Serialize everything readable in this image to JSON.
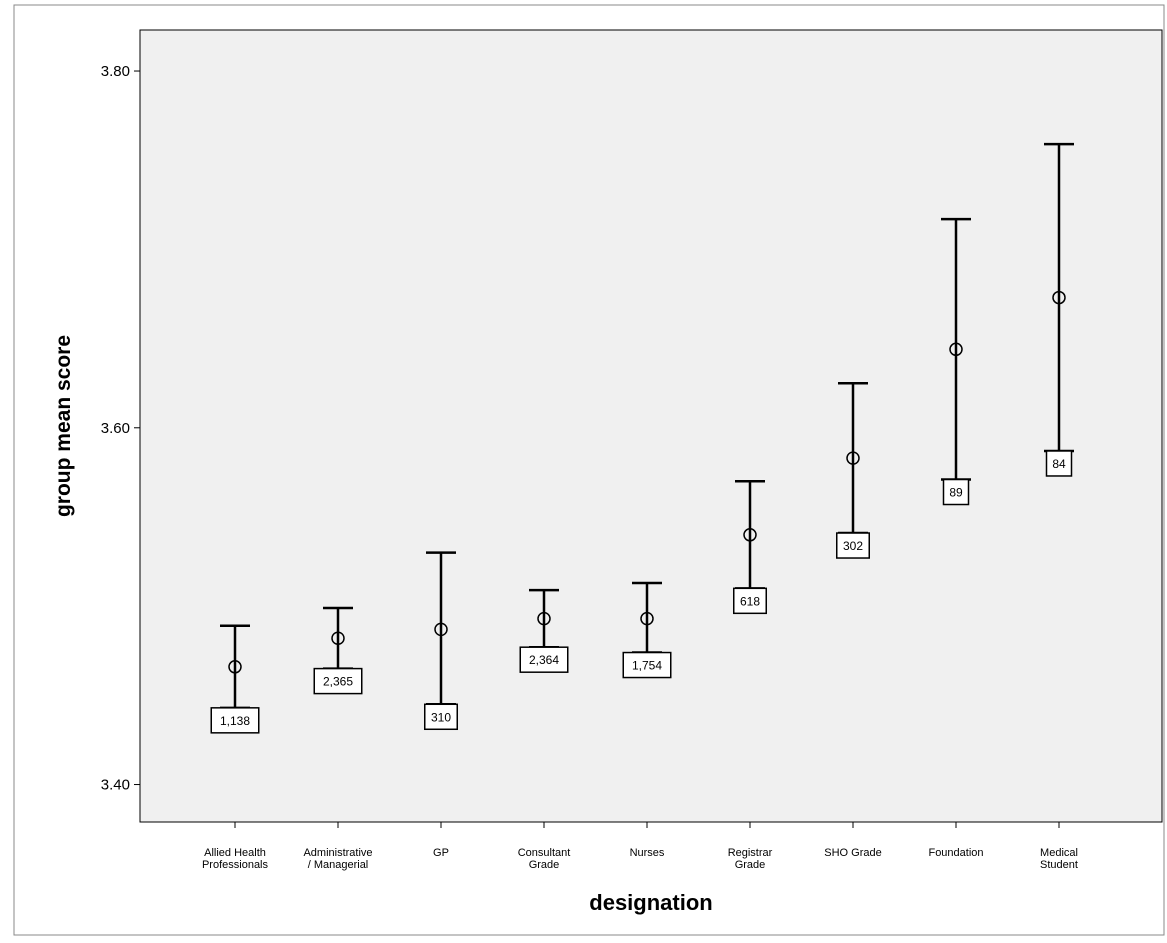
{
  "chart_data": {
    "type": "errorbar",
    "x_label": "designation",
    "y_label": "group mean score",
    "categories": [
      [
        "Allied Health",
        "Professionals"
      ],
      [
        "Administrative",
        "/ Managerial"
      ],
      [
        "GP"
      ],
      [
        "Consultant",
        "Grade"
      ],
      [
        "Nurses"
      ],
      [
        "Registrar",
        "Grade"
      ],
      [
        "SHO Grade"
      ],
      [
        "Foundation"
      ],
      [
        "Medical",
        "Student"
      ]
    ],
    "means": [
      3.466,
      3.482,
      3.487,
      3.493,
      3.493,
      3.54,
      3.583,
      3.644,
      3.673
    ],
    "lower": [
      3.443,
      3.465,
      3.445,
      3.477,
      3.474,
      3.51,
      3.541,
      3.571,
      3.587
    ],
    "upper": [
      3.489,
      3.499,
      3.53,
      3.509,
      3.513,
      3.57,
      3.625,
      3.717,
      3.759
    ],
    "count_labels": [
      "1,138",
      "2,365",
      "310",
      "2,364",
      "1,754",
      "618",
      "302",
      "89",
      "84"
    ],
    "ylim": [
      3.379,
      3.823
    ],
    "yticks": [
      {
        "value": 3.4,
        "label": "3.40"
      },
      {
        "value": 3.6,
        "label": "3.60"
      },
      {
        "value": 3.8,
        "label": "3.80"
      }
    ],
    "color": "#000000",
    "background": "#f0f0f0"
  }
}
